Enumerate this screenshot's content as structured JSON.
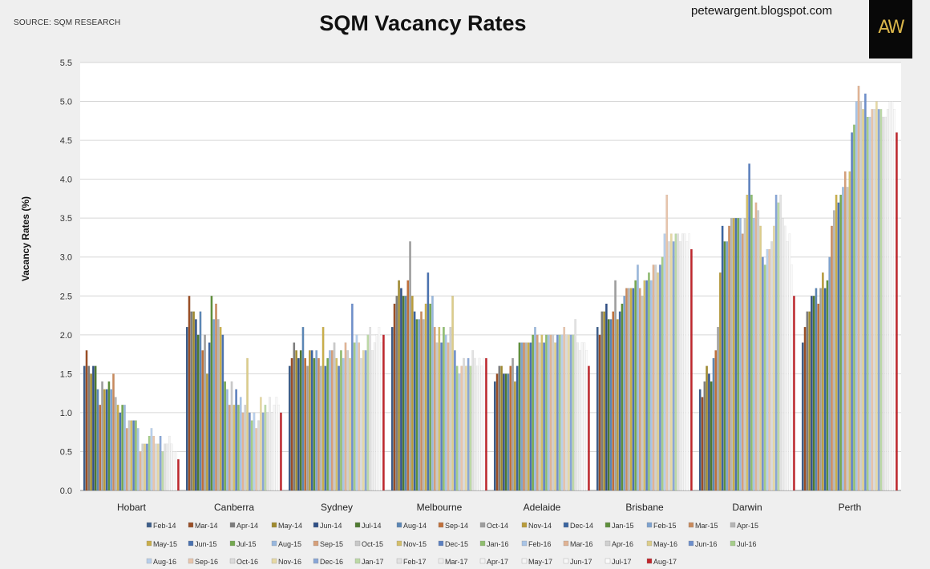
{
  "source": "SOURCE: SQM RESEARCH",
  "blog": "petewargent.blogspot.com",
  "logo_text": "AW",
  "chart_data": {
    "type": "bar",
    "title": "SQM Vacancy Rates",
    "xlabel": "",
    "ylabel": "Vacancy Rates (%)",
    "ylim": [
      0,
      5.5
    ],
    "yticks": [
      "0.0",
      "0.5",
      "1.0",
      "1.5",
      "2.0",
      "2.5",
      "3.0",
      "3.5",
      "4.0",
      "4.5",
      "5.0",
      "5.5"
    ],
    "grid": true,
    "legend_position": "bottom",
    "categories": [
      "Hobart",
      "Canberra",
      "Sydney",
      "Melbourne",
      "Adelaide",
      "Brisbane",
      "Darwin",
      "Perth"
    ],
    "series_names": [
      "Feb-14",
      "Mar-14",
      "Apr-14",
      "May-14",
      "Jun-14",
      "Jul-14",
      "Aug-14",
      "Sep-14",
      "Oct-14",
      "Nov-14",
      "Dec-14",
      "Jan-15",
      "Feb-15",
      "Mar-15",
      "Apr-15",
      "May-15",
      "Jun-15",
      "Jul-15",
      "Aug-15",
      "Sep-15",
      "Oct-15",
      "Nov-15",
      "Dec-15",
      "Jan-16",
      "Feb-16",
      "Mar-16",
      "Apr-16",
      "May-16",
      "Jun-16",
      "Jul-16",
      "Aug-16",
      "Sep-16",
      "Oct-16",
      "Nov-16",
      "Dec-16",
      "Jan-17",
      "Feb-17",
      "Mar-17",
      "Apr-17",
      "May-17",
      "Jun-17",
      "Jul-17",
      "Aug-17"
    ],
    "series_colors": [
      "#3d5e8a",
      "#9a4e25",
      "#7d7d7d",
      "#a08a2e",
      "#2f4f86",
      "#4f7a30",
      "#5b86b5",
      "#c0703a",
      "#9e9e9e",
      "#b99c3a",
      "#3a64a0",
      "#5e8f3b",
      "#7ea3cf",
      "#c98a5c",
      "#b5b5b5",
      "#c9ae4a",
      "#4a72b0",
      "#74a850",
      "#98b7dd",
      "#d6a07a",
      "#c8c8c8",
      "#d4bf6a",
      "#5b80c0",
      "#8fbd6e",
      "#a8c4e6",
      "#e0b394",
      "#d0d0d0",
      "#dccd8a",
      "#6d8fcc",
      "#a6cd8a",
      "#b8cfeb",
      "#e8c5ac",
      "#dadada",
      "#e6d9a4",
      "#89a6d6",
      "#bcd9a6",
      "#e2e2e2",
      "#ededed",
      "#f2f2f2",
      "#f5f5f5",
      "#f8f8f8",
      "#fbfbfb",
      "#c0262c"
    ],
    "values": [
      [
        1.6,
        1.8,
        1.6,
        1.5,
        1.6,
        1.6,
        1.3,
        1.1,
        1.4,
        1.3,
        1.3,
        1.4,
        1.3,
        1.5,
        1.2,
        1.1,
        1.0,
        1.1,
        1.1,
        0.8,
        0.9,
        0.9,
        0.9,
        0.9,
        0.8,
        0.5,
        0.6,
        0.6,
        0.6,
        0.7,
        0.8,
        0.7,
        0.6,
        0.6,
        0.7,
        0.5,
        0.6,
        0.6,
        0.7,
        0.6,
        0.5,
        0.5,
        0.4
      ],
      [
        2.1,
        2.5,
        2.3,
        2.3,
        2.2,
        2.0,
        2.3,
        1.8,
        2.0,
        1.5,
        1.9,
        2.5,
        2.2,
        2.4,
        2.2,
        2.1,
        2.0,
        1.4,
        1.3,
        1.1,
        1.4,
        1.1,
        1.3,
        1.1,
        1.2,
        1.0,
        1.1,
        1.7,
        1.0,
        0.9,
        1.0,
        0.8,
        0.9,
        1.2,
        1.0,
        1.1,
        1.0,
        1.2,
        1.0,
        1.1,
        1.2,
        1.1,
        1.0
      ],
      [
        1.6,
        1.7,
        1.9,
        1.8,
        1.7,
        1.8,
        2.1,
        1.7,
        1.6,
        1.8,
        1.8,
        1.7,
        1.8,
        1.7,
        1.6,
        2.1,
        1.6,
        1.7,
        1.8,
        1.8,
        1.9,
        1.7,
        1.6,
        1.8,
        1.7,
        1.9,
        1.8,
        1.7,
        2.4,
        1.9,
        2.0,
        1.9,
        1.7,
        1.8,
        1.8,
        2.0,
        2.1,
        1.8,
        1.9,
        2.0,
        2.1,
        1.9,
        2.0
      ],
      [
        2.1,
        2.4,
        2.5,
        2.7,
        2.6,
        2.5,
        2.5,
        2.7,
        3.2,
        2.5,
        2.3,
        2.2,
        2.2,
        2.3,
        2.2,
        2.4,
        2.8,
        2.4,
        2.5,
        2.1,
        1.9,
        2.1,
        1.9,
        2.1,
        2.0,
        1.9,
        2.1,
        2.5,
        1.8,
        1.6,
        1.5,
        1.6,
        1.7,
        1.6,
        1.7,
        1.6,
        1.8,
        1.7,
        1.6,
        1.7,
        1.6,
        1.7,
        1.7
      ],
      [
        1.4,
        1.5,
        1.6,
        1.6,
        1.5,
        1.5,
        1.5,
        1.6,
        1.7,
        1.4,
        1.6,
        1.9,
        1.9,
        1.9,
        1.9,
        1.9,
        1.9,
        2.0,
        2.1,
        2.0,
        1.9,
        2.0,
        1.9,
        2.0,
        2.0,
        2.0,
        2.0,
        1.9,
        2.0,
        2.0,
        2.0,
        2.1,
        2.0,
        2.0,
        2.0,
        2.0,
        2.2,
        1.9,
        1.8,
        1.9,
        1.9,
        1.8,
        1.6
      ],
      [
        2.1,
        2.0,
        2.3,
        2.3,
        2.4,
        2.2,
        2.2,
        2.3,
        2.7,
        2.2,
        2.3,
        2.4,
        2.5,
        2.6,
        2.6,
        2.6,
        2.6,
        2.7,
        2.9,
        2.6,
        2.5,
        2.7,
        2.7,
        2.8,
        2.7,
        2.9,
        2.9,
        2.8,
        2.9,
        3.0,
        3.3,
        3.8,
        3.2,
        3.3,
        3.2,
        3.3,
        3.3,
        3.2,
        3.3,
        3.3,
        3.2,
        3.3,
        3.1
      ],
      [
        1.3,
        1.2,
        1.4,
        1.6,
        1.5,
        1.4,
        1.7,
        1.8,
        2.1,
        2.8,
        3.4,
        3.2,
        3.2,
        3.4,
        3.5,
        3.5,
        3.5,
        3.5,
        3.5,
        3.3,
        3.5,
        3.8,
        4.2,
        3.8,
        3.5,
        3.7,
        3.6,
        3.4,
        3.0,
        2.9,
        3.1,
        3.1,
        3.2,
        3.4,
        3.8,
        3.7,
        3.8,
        3.5,
        3.4,
        3.2,
        3.3,
        2.9,
        2.5
      ],
      [
        1.9,
        2.1,
        2.3,
        2.3,
        2.5,
        2.5,
        2.6,
        2.4,
        2.6,
        2.8,
        2.6,
        2.7,
        3.0,
        3.4,
        3.6,
        3.8,
        3.7,
        3.8,
        3.9,
        4.1,
        3.9,
        4.1,
        4.6,
        4.7,
        5.0,
        5.2,
        5.0,
        4.9,
        5.1,
        4.8,
        4.8,
        4.9,
        4.9,
        5.0,
        4.9,
        4.9,
        4.8,
        4.8,
        4.9,
        5.0,
        5.0,
        4.9,
        4.6
      ]
    ]
  }
}
